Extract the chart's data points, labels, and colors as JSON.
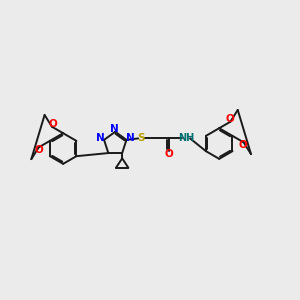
{
  "bg_color": "#ebebeb",
  "bond_color": "#1a1a1a",
  "n_color": "#0000ff",
  "o_color": "#ff0000",
  "s_color": "#b8a000",
  "nh_color": "#007070",
  "lw": 1.4,
  "xlim": [
    0,
    10
  ],
  "ylim": [
    1,
    8
  ],
  "figsize": [
    3.0,
    3.0
  ],
  "dpi": 100
}
